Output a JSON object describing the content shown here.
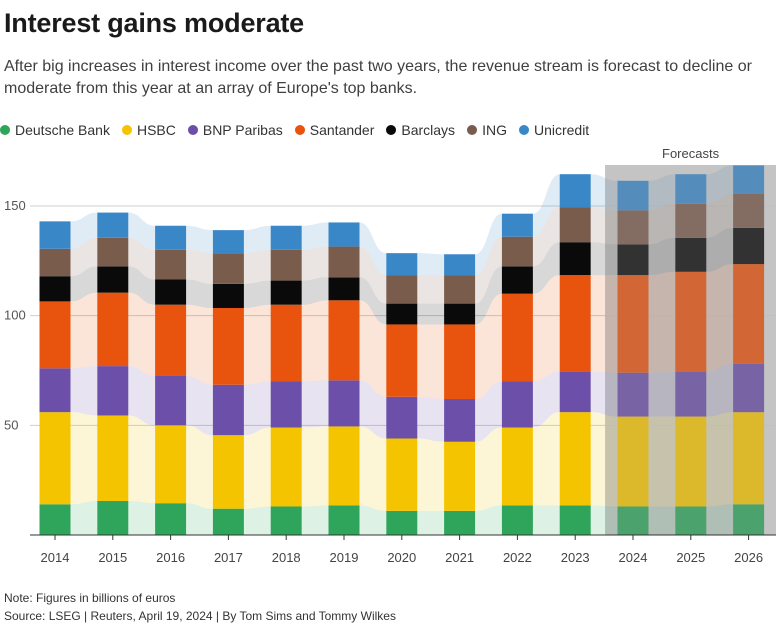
{
  "title": "Interest gains moderate",
  "subtitle": "After big increases in interest income over the past two years, the revenue stream is forecast to decline or moderate from this year at an array of Europe's top banks.",
  "note": "Note: Figures in billions of euros",
  "source": "Source: LSEG | Reuters, April 19, 2024 | By Tom Sims and Tommy Wilkes",
  "chart_data": {
    "type": "bar",
    "stacked": true,
    "categories": [
      "2014",
      "2015",
      "2016",
      "2017",
      "2018",
      "2019",
      "2020",
      "2021",
      "2022",
      "2023",
      "2024",
      "2025",
      "2026"
    ],
    "forecast_label": "Forecasts",
    "forecast_categories": [
      "2024",
      "2025",
      "2026"
    ],
    "ylim": [
      0,
      170
    ],
    "yticks": [
      50,
      100,
      150
    ],
    "grid": true,
    "legend_position": "top-left",
    "series": [
      {
        "name": "Deutsche Bank",
        "color": "#2ea55a",
        "values": [
          14,
          15.5,
          14.5,
          12,
          13,
          13.5,
          11,
          11,
          13.5,
          13.5,
          13,
          13,
          14
        ]
      },
      {
        "name": "HSBC",
        "color": "#f5c400",
        "values": [
          42,
          39,
          35.5,
          33.5,
          36,
          36,
          33,
          31.5,
          35.5,
          42.5,
          41,
          41,
          42
        ]
      },
      {
        "name": "BNP Paribas",
        "color": "#6b4fa8",
        "values": [
          20,
          22.5,
          22.5,
          23,
          21,
          21,
          19,
          19.5,
          21,
          18.5,
          20,
          20.5,
          22
        ]
      },
      {
        "name": "Santander",
        "color": "#e8540e",
        "values": [
          30.5,
          33.5,
          32.5,
          35,
          35,
          36.5,
          33,
          34,
          40,
          44,
          44.5,
          45.5,
          45.5
        ]
      },
      {
        "name": "Barclays",
        "color": "#0a0a0a",
        "values": [
          11.5,
          12,
          11.5,
          11,
          11,
          10.5,
          9.5,
          9.5,
          12.5,
          15,
          14,
          15.5,
          16.5
        ]
      },
      {
        "name": "ING",
        "color": "#7a5c4d",
        "values": [
          12.5,
          13,
          13.5,
          14,
          14,
          14,
          13,
          13,
          13.5,
          16,
          15.5,
          15.5,
          15.5
        ]
      },
      {
        "name": "Unicredit",
        "color": "#3a87c8",
        "values": [
          12.5,
          11.5,
          11,
          10.5,
          11,
          11,
          10,
          9.5,
          10.5,
          15,
          13.5,
          13.5,
          13
        ]
      }
    ]
  }
}
